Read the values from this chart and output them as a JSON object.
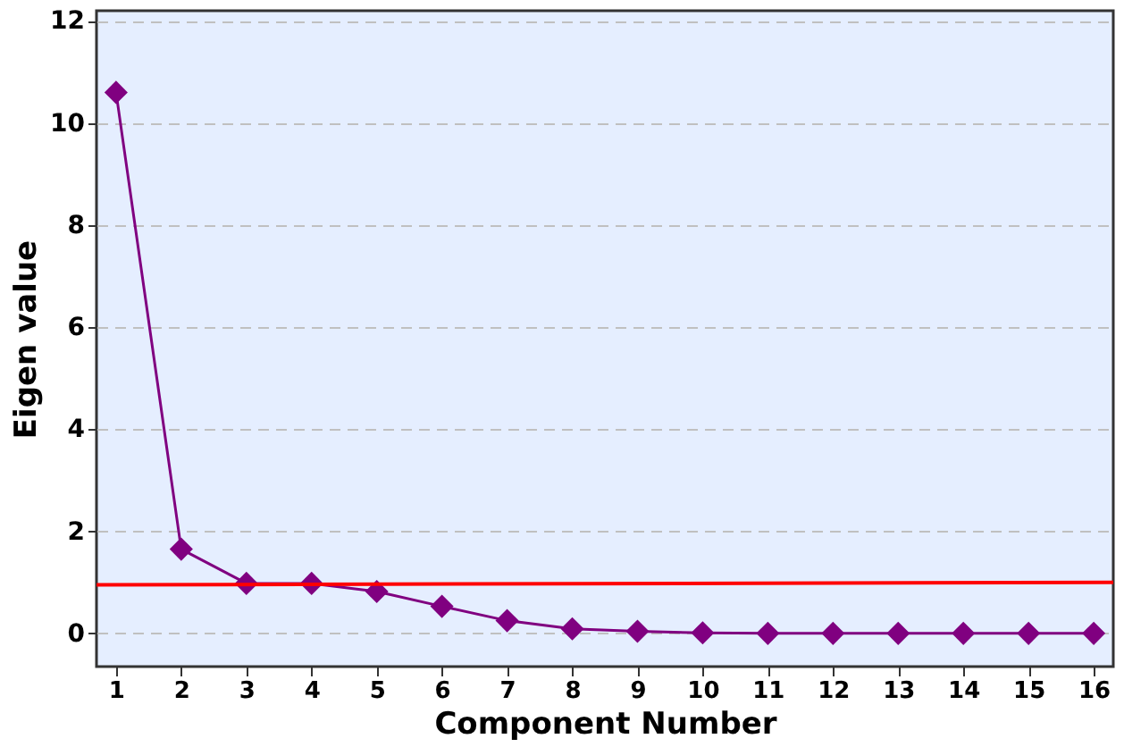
{
  "chart_data": {
    "type": "line",
    "xlabel": "Component Number",
    "ylabel": "Eigen value",
    "x": [
      1,
      2,
      3,
      4,
      5,
      6,
      7,
      8,
      9,
      10,
      11,
      12,
      13,
      14,
      15,
      16
    ],
    "series": [
      {
        "color": "#800080",
        "values": [
          10.6,
          1.65,
          0.98,
          0.98,
          0.82,
          0.53,
          0.25,
          0.09,
          0.04,
          0.01,
          0,
          0,
          0,
          0,
          0,
          0
        ],
        "marker": "diamond"
      },
      {
        "type": "line",
        "color": "#ff0000",
        "x": [
          0.7,
          16.3
        ],
        "values": [
          0.95,
          1.0
        ],
        "marker": "none"
      }
    ],
    "xlim": [
      0.7,
      16.3
    ],
    "xticks": [
      1,
      2,
      3,
      4,
      5,
      6,
      7,
      8,
      9,
      10,
      11,
      12,
      13,
      14,
      15,
      16
    ],
    "ylim": [
      -0.65,
      12.2
    ],
    "yticks": [
      0,
      2,
      4,
      6,
      8,
      10,
      12
    ],
    "grid": "y"
  }
}
